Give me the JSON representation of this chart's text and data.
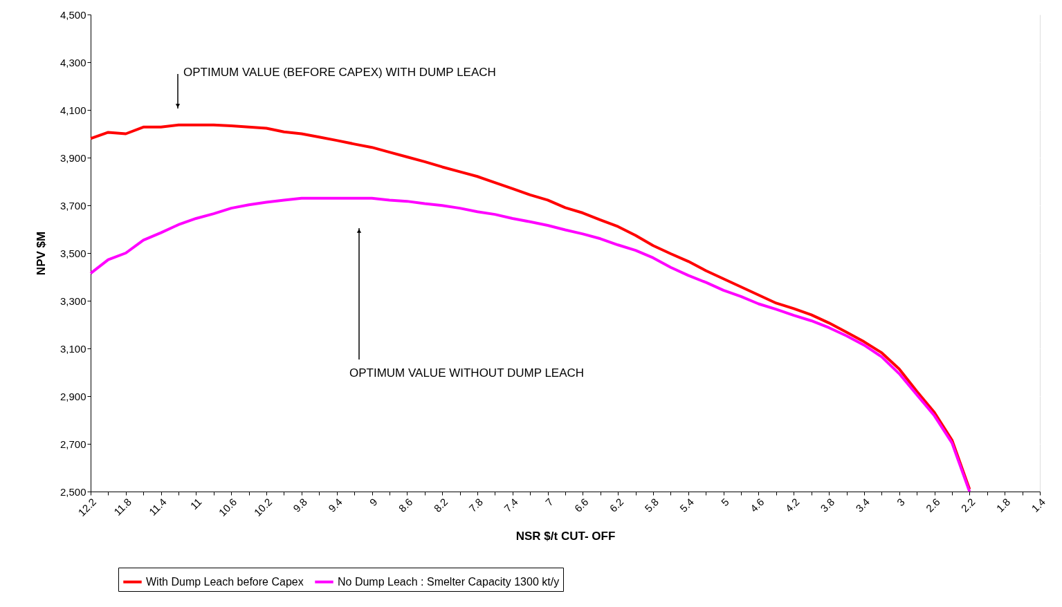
{
  "chart_data": {
    "type": "line",
    "xlabel": "NSR $/t CUT- OFF",
    "ylabel": "NPV $M",
    "categories": [
      "12.2",
      null,
      "11.8",
      null,
      "11.4",
      null,
      "11",
      null,
      "10.6",
      null,
      "10.2",
      null,
      "9.8",
      null,
      "9.4",
      null,
      "9",
      null,
      "8.6",
      null,
      "8.2",
      null,
      "7.8",
      null,
      "7.4",
      null,
      "7",
      null,
      "6.6",
      null,
      "6.2",
      null,
      "5.8",
      null,
      "5.4",
      null,
      "5",
      null,
      "4.6",
      null,
      "4.2",
      null,
      "3.8",
      null,
      "3.4",
      null,
      "3",
      null,
      "2.6",
      null,
      "2.2",
      null,
      "1.8",
      null,
      "1.4"
    ],
    "series": [
      {
        "name": "With Dump Leach before Capex",
        "color": "#ff0000",
        "values": [
          3980,
          4006,
          4000,
          4028,
          4028,
          4037,
          4037,
          4037,
          4033,
          4028,
          4023,
          4008,
          4000,
          3986,
          3972,
          3957,
          3943,
          3923,
          3903,
          3883,
          3861,
          3841,
          3821,
          3795,
          3770,
          3744,
          3722,
          3690,
          3668,
          3639,
          3611,
          3574,
          3531,
          3497,
          3465,
          3426,
          3392,
          3358,
          3324,
          3290,
          3267,
          3241,
          3207,
          3168,
          3128,
          3082,
          3014,
          2920,
          2832,
          2716,
          2510,
          null,
          null,
          null,
          null
        ]
      },
      {
        "name": "No Dump Leach : Smelter Capacity 1300 kt/y",
        "color": "#ff00ff",
        "values": [
          3415,
          3472,
          3500,
          3554,
          3585,
          3619,
          3645,
          3665,
          3688,
          3702,
          3713,
          3722,
          3730,
          3730,
          3730,
          3730,
          3730,
          3722,
          3717,
          3707,
          3699,
          3688,
          3673,
          3662,
          3645,
          3631,
          3616,
          3597,
          3580,
          3560,
          3534,
          3511,
          3480,
          3440,
          3406,
          3377,
          3344,
          3318,
          3287,
          3264,
          3239,
          3216,
          3187,
          3153,
          3114,
          3065,
          2994,
          2906,
          2818,
          2704,
          2500,
          null,
          null,
          null,
          null
        ]
      }
    ],
    "ylim": [
      2500,
      4500
    ],
    "yticks": [
      {
        "value": 2500,
        "label": "2,500"
      },
      {
        "value": 2700,
        "label": "2,700"
      },
      {
        "value": 2900,
        "label": "2,900"
      },
      {
        "value": 3100,
        "label": "3,100"
      },
      {
        "value": 3300,
        "label": "3,300"
      },
      {
        "value": 3500,
        "label": "3,500"
      },
      {
        "value": 3700,
        "label": "3,700"
      },
      {
        "value": 3900,
        "label": "3,900"
      },
      {
        "value": 4100,
        "label": "4,100"
      },
      {
        "value": 4300,
        "label": "4,300"
      },
      {
        "value": 4500,
        "label": "4,500"
      }
    ],
    "grid": "y",
    "legend": "bottom",
    "line_style": "solid",
    "marker": "none",
    "annotations": [
      "OPTIMUM VALUE (BEFORE CAPEX) WITH DUMP LEACH",
      "OPTIMUM VALUE WITHOUT DUMP LEACH"
    ]
  }
}
